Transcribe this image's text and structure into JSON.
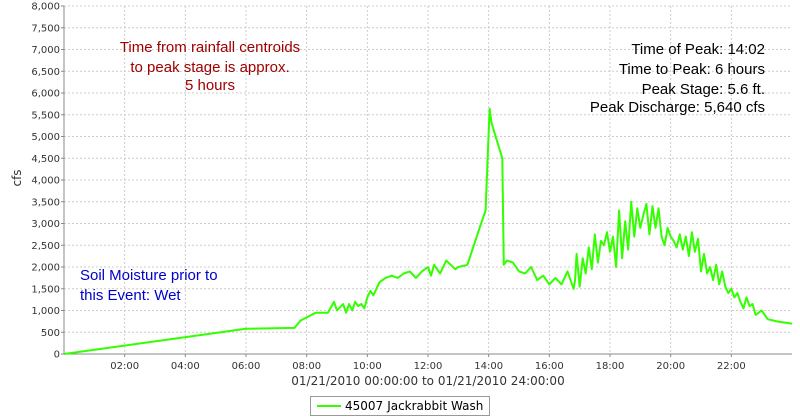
{
  "chart_data": {
    "type": "line",
    "ylabel": "cfs",
    "xlabel": "01/21/2010 00:00:00 to 01/21/2010 24:00:00",
    "ylim": [
      0,
      8000
    ],
    "xlim_hours": [
      0,
      24
    ],
    "y_ticks": [
      "0",
      "500",
      "1,000",
      "1,500",
      "2,000",
      "2,500",
      "3,000",
      "3,500",
      "4,000",
      "4,500",
      "5,000",
      "5,500",
      "6,000",
      "6,500",
      "7,000",
      "7,500",
      "8,000"
    ],
    "x_ticks": [
      "02:00",
      "04:00",
      "06:00",
      "08:00",
      "10:00",
      "12:00",
      "14:00",
      "16:00",
      "18:00",
      "20:00",
      "22:00"
    ],
    "grid": true,
    "legend_position": "bottom-center",
    "series": [
      {
        "name": "45007Jackrabbit Wash",
        "color": "#33ff00",
        "x_hours": [
          0.0,
          6.0,
          7.6,
          7.8,
          8.3,
          8.7,
          8.9,
          9.0,
          9.2,
          9.3,
          9.4,
          9.5,
          9.6,
          9.7,
          9.8,
          9.9,
          10.0,
          10.1,
          10.2,
          10.3,
          10.4,
          10.6,
          10.8,
          11.0,
          11.2,
          11.4,
          11.6,
          11.8,
          12.0,
          12.1,
          12.2,
          12.4,
          12.6,
          12.9,
          13.0,
          13.3,
          13.7,
          13.9,
          14.03,
          14.1,
          14.45,
          14.5,
          14.6,
          14.8,
          15.0,
          15.2,
          15.4,
          15.6,
          15.8,
          16.0,
          16.2,
          16.4,
          16.6,
          16.8,
          16.85,
          16.9,
          17.0,
          17.1,
          17.2,
          17.3,
          17.4,
          17.5,
          17.6,
          17.7,
          17.8,
          17.9,
          18.0,
          18.1,
          18.2,
          18.3,
          18.4,
          18.5,
          18.6,
          18.7,
          18.8,
          18.9,
          19.0,
          19.1,
          19.2,
          19.3,
          19.4,
          19.5,
          19.6,
          19.7,
          19.8,
          19.9,
          20.0,
          20.1,
          20.2,
          20.3,
          20.4,
          20.5,
          20.6,
          20.7,
          20.8,
          20.9,
          21.0,
          21.1,
          21.2,
          21.3,
          21.4,
          21.5,
          21.6,
          21.7,
          21.8,
          21.9,
          22.0,
          22.1,
          22.2,
          22.3,
          22.4,
          22.5,
          22.6,
          22.7,
          22.8,
          23.0,
          23.2,
          23.5,
          24.0
        ],
        "values": [
          0,
          580,
          600,
          770,
          950,
          950,
          1200,
          1000,
          1150,
          950,
          1150,
          1000,
          1200,
          1100,
          1150,
          1050,
          1300,
          1450,
          1350,
          1500,
          1650,
          1750,
          1800,
          1750,
          1850,
          1900,
          1750,
          1900,
          2000,
          1800,
          2050,
          1850,
          2150,
          1950,
          2000,
          2050,
          2900,
          3300,
          5640,
          5300,
          4500,
          2050,
          2150,
          2100,
          1900,
          1850,
          2000,
          1700,
          1800,
          1600,
          1750,
          1600,
          1900,
          1500,
          1700,
          2300,
          1550,
          2200,
          1850,
          2450,
          1950,
          2750,
          2100,
          2600,
          2500,
          2800,
          2350,
          2700,
          2000,
          3300,
          2200,
          3050,
          2400,
          3500,
          2700,
          3350,
          2900,
          3200,
          3450,
          2750,
          3400,
          2900,
          3350,
          2700,
          2500,
          2900,
          2700,
          2600,
          2450,
          2750,
          2400,
          2700,
          2250,
          2800,
          2350,
          2650,
          1900,
          2300,
          1850,
          2000,
          1700,
          2050,
          1600,
          1900,
          1550,
          1400,
          1500,
          1300,
          1400,
          1200,
          1050,
          1300,
          1100,
          1150,
          900,
          1000,
          800,
          750,
          700
        ]
      }
    ]
  },
  "annotations": {
    "rainfall_note": [
      "Time from rainfall centroids",
      "to peak stage is approx.",
      "5 hours"
    ],
    "peak_stats": [
      "Time of Peak: 14:02",
      "Time to Peak: 6 hours",
      "Peak Stage: 5.6 ft.",
      "Peak Discharge: 5,640 cfs"
    ],
    "soil_moisture": [
      "Soil Moisture prior to",
      "this Event: Wet"
    ]
  },
  "colors": {
    "rainfall_note": "#a00000",
    "peak_stats": "#000000",
    "soil_moisture": "#0000cc",
    "gridline": "#cccccc",
    "axis": "#888888"
  },
  "legend": {
    "id": "45007",
    "label": "Jackrabbit Wash"
  }
}
